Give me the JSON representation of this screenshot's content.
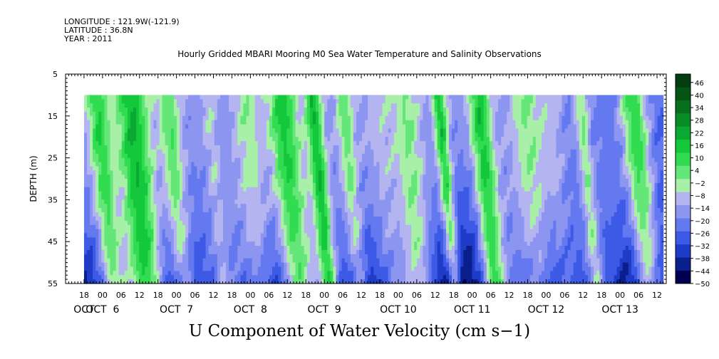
{
  "header": {
    "longitude": "LONGITUDE : 121.9W(-121.9)",
    "latitude": "LATITUDE : 36.8N",
    "year": "YEAR : 2011"
  },
  "title": "Hourly Gridded MBARI Mooring M0 Sea Water Temperature and Salinity Observations",
  "caption": "U Component of Water Velocity (cm s−1)",
  "chart_data": {
    "type": "heatmap",
    "title": "Hourly Gridded MBARI Mooring M0 Sea Water Temperature and Salinity Observations",
    "xlabel": "",
    "ylabel": "DEPTH (m)",
    "value_label": "U Component of Water Velocity (cm s−1)",
    "x_axis": {
      "start": "2011-10-05T12:00",
      "end": "2011-10-13T15:00",
      "data_start": "2011-10-05T18:00",
      "data_end": "2011-10-13T14:00",
      "hour_tick_labels": [
        "18",
        "00",
        "06",
        "12",
        "18",
        "00",
        "06",
        "12",
        "18",
        "00",
        "06",
        "12",
        "18",
        "00",
        "06",
        "12",
        "18",
        "00",
        "06",
        "12",
        "18",
        "00",
        "06",
        "12",
        "18",
        "00",
        "06",
        "12",
        "18",
        "00",
        "06",
        "12"
      ],
      "day_labels": [
        {
          "label": "OCT",
          "date": "2011-10-05T18:00"
        },
        {
          "label": "OCT  6",
          "date": "2011-10-06T00:00"
        },
        {
          "label": "OCT  7",
          "date": "2011-10-07T00:00"
        },
        {
          "label": "OCT  8",
          "date": "2011-10-08T00:00"
        },
        {
          "label": "OCT  9",
          "date": "2011-10-09T00:00"
        },
        {
          "label": "OCT 10",
          "date": "2011-10-10T00:00"
        },
        {
          "label": "OCT 11",
          "date": "2011-10-11T00:00"
        },
        {
          "label": "OCT 12",
          "date": "2011-10-12T00:00"
        },
        {
          "label": "OCT 13",
          "date": "2011-10-13T00:00"
        }
      ]
    },
    "y_axis": {
      "range": [
        5,
        55
      ],
      "inverted": true,
      "tick_labels": [
        "5",
        "15",
        "25",
        "35",
        "45",
        "55"
      ],
      "data_top_depth": 10,
      "data_bottom_depth": 55
    },
    "colorbar": {
      "range": [
        -50,
        50
      ],
      "tick_labels": [
        "46",
        "40",
        "34",
        "28",
        "22",
        "16",
        "10",
        "4",
        "−2",
        "−8",
        "−14",
        "−20",
        "−26",
        "−32",
        "−38",
        "−44",
        "−50"
      ],
      "palette": [
        "#000050",
        "#0a1e8c",
        "#1e3cc8",
        "#3c5ae6",
        "#6478f0",
        "#8c96f0",
        "#b4b4f0",
        "#a8f0a8",
        "#64e678",
        "#32dc50",
        "#14c83c",
        "#0aaa32",
        "#088c28",
        "#06701e",
        "#045416",
        "#023c10"
      ]
    },
    "features": {
      "green_bands_center_time": [
        "2011-10-05T22:00",
        "2011-10-06T09:00",
        "2011-10-06T21:00",
        "2011-10-07T10:00",
        "2011-10-07T22:00",
        "2011-10-08T10:00",
        "2011-10-08T20:00",
        "2011-10-09T06:00",
        "2011-10-09T17:00",
        "2011-10-10T02:00",
        "2011-10-10T13:00",
        "2011-10-11T02:00",
        "2011-10-11T17:00",
        "2011-10-12T01:00",
        "2011-10-12T11:00",
        "2011-10-13T04:00"
      ],
      "negative_near_bottom": true,
      "strongest_negative_near": "2011-10-10T19:00"
    }
  }
}
